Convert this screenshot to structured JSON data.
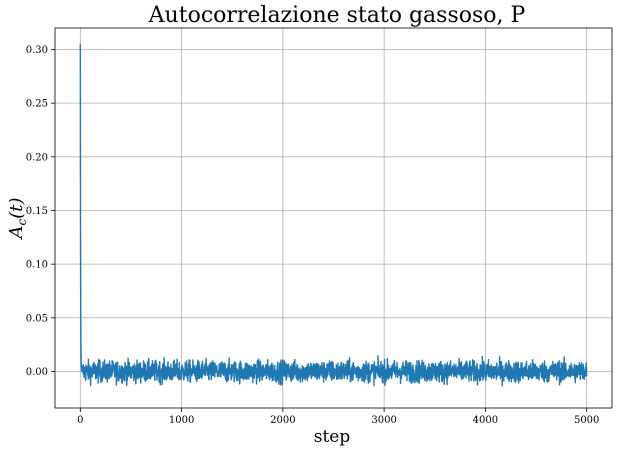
{
  "chart_data": {
    "type": "line",
    "title": "Autocorrelazione stato gassoso, P",
    "xlabel": "step",
    "ylabel": {
      "main": "A",
      "sub": "c",
      "tail": "(t)"
    },
    "xlim": [
      -250,
      5250
    ],
    "ylim": [
      -0.034,
      0.32
    ],
    "xticks": [
      0,
      1000,
      2000,
      3000,
      4000,
      5000
    ],
    "xtick_labels": [
      "0",
      "1000",
      "2000",
      "3000",
      "4000",
      "5000"
    ],
    "yticks": [
      0.0,
      0.05,
      0.1,
      0.15,
      0.2,
      0.25,
      0.3
    ],
    "ytick_labels": [
      "0.00",
      "0.05",
      "0.10",
      "0.15",
      "0.20",
      "0.25",
      "0.30"
    ],
    "grid": true,
    "series": [
      {
        "color": "#1f77b4",
        "initial_decay": {
          "x": [
            0,
            1,
            2,
            3,
            4,
            5,
            6,
            8,
            10,
            15,
            20
          ],
          "y": [
            0.305,
            0.21,
            0.14,
            0.09,
            0.06,
            0.04,
            0.025,
            0.012,
            0.005,
            0.0,
            0.0
          ]
        },
        "noise": {
          "x_start": 20,
          "x_end": 5000,
          "mean": 0.0,
          "amplitude": 0.009
        }
      }
    ]
  }
}
